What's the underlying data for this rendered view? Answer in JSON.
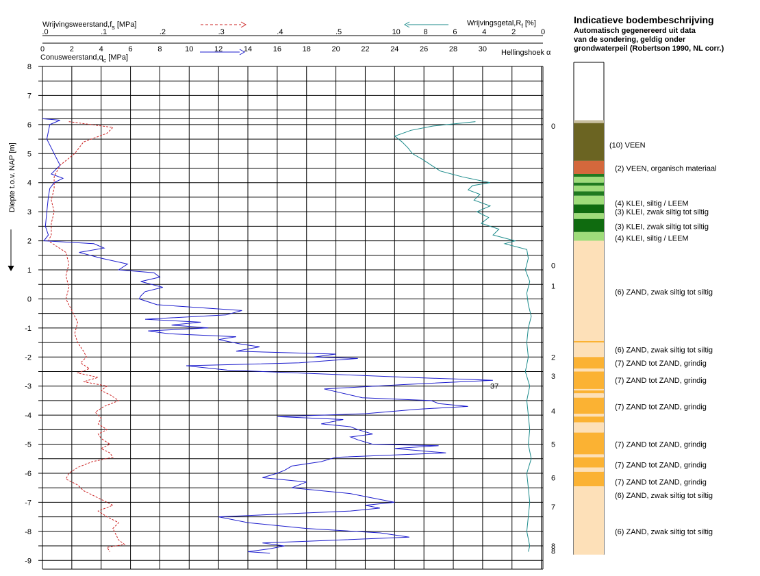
{
  "chart_data": {
    "type": "line",
    "header": {
      "fs_label": "Wrijvingsweerstand,f",
      "fs_sub": "s",
      "fs_unit": " [MPa]",
      "rf_label": "Wrijvingsgetal,R",
      "rf_sub": "f",
      "rf_unit": " [%]",
      "qc_label": "Conusweerstand,q",
      "qc_sub": "c",
      "qc_unit": " [MPa]",
      "hoek_label": "Hellingshoek α",
      "ylabel": "Diepte t.o.v. NAP [m]"
    },
    "fs_ticks": [
      ".0",
      ".1",
      ".2",
      ".3",
      ".4",
      ".5"
    ],
    "rf_ticks": [
      "10",
      "8",
      "6",
      "4",
      "2",
      "0"
    ],
    "qc_ticks": [
      "0",
      "2",
      "4",
      "6",
      "8",
      "10",
      "12",
      "14",
      "16",
      "18",
      "20",
      "22",
      "24",
      "26",
      "28",
      "30"
    ],
    "y_ticks": [
      "8",
      "7",
      "6",
      "5",
      "4",
      "3",
      "2",
      "1",
      "0",
      "-1",
      "-2",
      "-3",
      "-4",
      "-5",
      "-6",
      "-7",
      "-8",
      "-9"
    ],
    "ylim": [
      -9.3,
      8
    ],
    "qc_xlim": [
      0,
      34
    ],
    "fs_xlim": [
      0,
      0.6
    ],
    "rf_xlim": [
      0,
      12
    ],
    "qc_max_label": "37",
    "qc": {
      "name": "Conusweerstand",
      "color": "#1a1acc",
      "depth": [
        6.2,
        6.15,
        6.0,
        5.5,
        5.0,
        4.6,
        4.3,
        4.15,
        4.0,
        3.8,
        3.5,
        3.0,
        2.5,
        2.2,
        2.0,
        1.9,
        1.75,
        1.6,
        1.4,
        1.2,
        1.0,
        0.9,
        0.75,
        0.6,
        0.4,
        0.25,
        0.1,
        0.0,
        -0.2,
        -0.4,
        -0.55,
        -0.7,
        -0.8,
        -0.9,
        -1.0,
        -1.1,
        -1.2,
        -1.3,
        -1.4,
        -1.55,
        -1.65,
        -1.8,
        -1.9,
        -2.0,
        -2.05,
        -2.2,
        -2.3,
        -2.45,
        -2.6,
        -2.7,
        -2.8,
        -2.95,
        -3.1,
        -3.25,
        -3.4,
        -3.5,
        -3.6,
        -3.7,
        -3.8,
        -3.95,
        -4.05,
        -4.15,
        -4.3,
        -4.4,
        -4.5,
        -4.65,
        -4.75,
        -4.85,
        -5.0,
        -5.05,
        -5.15,
        -5.3,
        -5.45,
        -5.6,
        -5.75,
        -5.9,
        -6.0,
        -6.15,
        -6.3,
        -6.5,
        -6.7,
        -6.85,
        -7.0,
        -7.1,
        -7.2,
        -7.3,
        -7.5,
        -7.7,
        -7.9,
        -8.05,
        -8.2,
        -8.3,
        -8.4,
        -8.5,
        -8.6,
        -8.7,
        -8.75
      ],
      "values": [
        0.0,
        1.2,
        0.5,
        0.3,
        0.8,
        1.2,
        0.6,
        1.4,
        0.8,
        0.5,
        0.4,
        0.3,
        0.2,
        0.4,
        0.1,
        3.5,
        4.2,
        2.5,
        4.0,
        5.8,
        5.2,
        7.6,
        8.0,
        6.7,
        8.2,
        7.0,
        6.7,
        6.6,
        7.8,
        13.6,
        12.5,
        7.0,
        10.8,
        8.8,
        11.3,
        7.2,
        8.6,
        13.2,
        12.0,
        13.5,
        14.8,
        13.2,
        20.0,
        18.5,
        21.5,
        17.5,
        9.8,
        12.6,
        20.0,
        25.0,
        30.7,
        24.5,
        19.2,
        20.5,
        21.8,
        26.5,
        27.0,
        29.0,
        25.5,
        22.0,
        16.0,
        20.5,
        19.0,
        21.0,
        21.5,
        22.5,
        21.0,
        21.5,
        22.5,
        27.0,
        24.0,
        27.5,
        20.0,
        19.0,
        17.0,
        16.5,
        16.0,
        15.0,
        18.0,
        17.0,
        21.0,
        22.5,
        24.0,
        22.0,
        23.0,
        21.0,
        12.0,
        14.0,
        18.0,
        23.0,
        25.0,
        20.0,
        15.0,
        16.5,
        15.5,
        14.0,
        15.5
      ]
    },
    "fs": {
      "name": "Wrijvingsweerstand",
      "color": "#cc2222",
      "depth": [
        6.1,
        5.9,
        5.7,
        5.4,
        5.0,
        4.6,
        4.2,
        3.8,
        3.4,
        3.0,
        2.6,
        2.2,
        2.0,
        1.6,
        1.2,
        0.8,
        0.4,
        0.0,
        -0.4,
        -0.8,
        -1.2,
        -1.5,
        -1.8,
        -2.0,
        -2.2,
        -2.4,
        -2.55,
        -2.7,
        -2.85,
        -3.0,
        -3.15,
        -3.3,
        -3.5,
        -3.7,
        -3.9,
        -4.1,
        -4.3,
        -4.5,
        -4.65,
        -4.8,
        -5.0,
        -5.15,
        -5.3,
        -5.45,
        -5.6,
        -5.8,
        -6.0,
        -6.2,
        -6.4,
        -6.6,
        -6.8,
        -7.0,
        -7.1,
        -7.3,
        -7.5,
        -7.7,
        -7.9,
        -8.1,
        -8.3,
        -8.45,
        -8.55,
        -8.7
      ],
      "values": [
        0.045,
        0.12,
        0.11,
        0.07,
        0.055,
        0.03,
        0.02,
        0.02,
        0.015,
        0.02,
        0.015,
        0.015,
        0.01,
        0.04,
        0.045,
        0.04,
        0.045,
        0.04,
        0.05,
        0.06,
        0.055,
        0.06,
        0.07,
        0.075,
        0.065,
        0.08,
        0.06,
        0.095,
        0.07,
        0.11,
        0.1,
        0.115,
        0.13,
        0.105,
        0.09,
        0.1,
        0.095,
        0.11,
        0.095,
        0.1,
        0.115,
        0.1,
        0.115,
        0.12,
        0.085,
        0.06,
        0.045,
        0.04,
        0.06,
        0.07,
        0.09,
        0.11,
        0.12,
        0.095,
        0.11,
        0.13,
        0.12,
        0.125,
        0.13,
        0.14,
        0.11,
        0.115
      ]
    },
    "rf": {
      "name": "Wrijvingsgetal",
      "color": "#1a8a8a",
      "depth": [
        6.1,
        5.95,
        5.8,
        5.6,
        5.4,
        5.2,
        5.0,
        4.8,
        4.6,
        4.4,
        4.2,
        4.0,
        3.9,
        3.75,
        3.6,
        3.4,
        3.2,
        3.0,
        2.8,
        2.6,
        2.4,
        2.2,
        2.0,
        1.9,
        1.7,
        1.4,
        1.0,
        0.6,
        0.2,
        -0.2,
        -0.6,
        -1.0,
        -1.5,
        -2.0,
        -2.5,
        -3.0,
        -3.5,
        -4.0,
        -4.5,
        -5.0,
        -5.5,
        -6.0,
        -6.5,
        -7.0,
        -7.5,
        -8.0,
        -8.5,
        -8.7
      ],
      "values": [
        4.6,
        7.5,
        9.0,
        10.1,
        9.6,
        9.2,
        8.9,
        8.2,
        7.6,
        7.0,
        5.5,
        3.6,
        4.8,
        5.1,
        4.3,
        4.7,
        3.6,
        4.5,
        3.7,
        4.2,
        3.0,
        3.4,
        1.9,
        2.6,
        1.1,
        1.0,
        1.2,
        0.9,
        1.1,
        1.0,
        0.8,
        1.0,
        1.1,
        1.0,
        1.2,
        0.9,
        1.1,
        1.0,
        0.9,
        1.0,
        0.8,
        1.1,
        1.0,
        0.9,
        1.0,
        1.1,
        0.9,
        1.0
      ]
    },
    "hoek_labels": [
      {
        "depth": 5.95,
        "text": "0"
      },
      {
        "depth": 1.15,
        "text": "0"
      },
      {
        "depth": 0.45,
        "text": "1"
      },
      {
        "depth": -2.0,
        "text": "2"
      },
      {
        "depth": -2.65,
        "text": "3"
      },
      {
        "depth": -3.85,
        "text": "4"
      },
      {
        "depth": -5.0,
        "text": "5"
      },
      {
        "depth": -6.15,
        "text": "6"
      },
      {
        "depth": -7.15,
        "text": "7"
      },
      {
        "depth": -8.5,
        "text": "8"
      },
      {
        "depth": -8.68,
        "text": "8"
      }
    ]
  },
  "legend": {
    "title": "Indicatieve bodembeschrijving",
    "subtitle_lines": [
      "Automatisch gegenereerd uit data",
      "van de sondering, geldig onder",
      "grondwaterpeil (Robertson 1990, NL corr.)"
    ]
  },
  "soil": {
    "colors": {
      "veen": "#6b6422",
      "veen_org": "#d4683c",
      "klei": "#1f7a1f",
      "klei_dark": "#0f6b0f",
      "leem": "#9fdc7a",
      "zand": "#fde0b8",
      "grind": "#fbb233"
    },
    "blocks": [
      {
        "top": 6.15,
        "bottom": 6.05,
        "c": "#c8bfa0"
      },
      {
        "top": 6.05,
        "bottom": 4.75,
        "c": "#6b6422"
      },
      {
        "top": 4.75,
        "bottom": 4.3,
        "c": "#d4683c"
      },
      {
        "top": 4.3,
        "bottom": 4.2,
        "c": "#1f7a1f"
      },
      {
        "top": 4.2,
        "bottom": 4.0,
        "c": "#9fdc7a"
      },
      {
        "top": 4.0,
        "bottom": 3.9,
        "c": "#1f7a1f"
      },
      {
        "top": 3.9,
        "bottom": 3.7,
        "c": "#9fdc7a"
      },
      {
        "top": 3.7,
        "bottom": 3.55,
        "c": "#1f7a1f"
      },
      {
        "top": 3.55,
        "bottom": 3.25,
        "c": "#9fdc7a"
      },
      {
        "top": 3.25,
        "bottom": 2.95,
        "c": "#0f6b0f"
      },
      {
        "top": 2.95,
        "bottom": 2.75,
        "c": "#9fdc7a"
      },
      {
        "top": 2.75,
        "bottom": 2.3,
        "c": "#0f6b0f"
      },
      {
        "top": 2.3,
        "bottom": 2.0,
        "c": "#9fdc7a"
      },
      {
        "top": 2.0,
        "bottom": -1.45,
        "c": "#fde0b8"
      },
      {
        "top": -1.45,
        "bottom": -1.5,
        "c": "#fbb233"
      },
      {
        "top": -1.5,
        "bottom": -2.0,
        "c": "#fde0b8"
      },
      {
        "top": -2.0,
        "bottom": -2.4,
        "c": "#fbb233"
      },
      {
        "top": -2.4,
        "bottom": -2.5,
        "c": "#fde0b8"
      },
      {
        "top": -2.5,
        "bottom": -3.1,
        "c": "#fbb233"
      },
      {
        "top": -3.1,
        "bottom": -3.15,
        "c": "#fde0b8"
      },
      {
        "top": -3.15,
        "bottom": -3.25,
        "c": "#fbb233"
      },
      {
        "top": -3.25,
        "bottom": -3.4,
        "c": "#fde0b8"
      },
      {
        "top": -3.4,
        "bottom": -3.95,
        "c": "#fbb233"
      },
      {
        "top": -3.95,
        "bottom": -4.05,
        "c": "#fde0b8"
      },
      {
        "top": -4.05,
        "bottom": -4.25,
        "c": "#fbb233"
      },
      {
        "top": -4.25,
        "bottom": -4.6,
        "c": "#fde0b8"
      },
      {
        "top": -4.6,
        "bottom": -5.35,
        "c": "#fbb233"
      },
      {
        "top": -5.35,
        "bottom": -5.45,
        "c": "#fde0b8"
      },
      {
        "top": -5.45,
        "bottom": -5.8,
        "c": "#fbb233"
      },
      {
        "top": -5.8,
        "bottom": -5.95,
        "c": "#fde0b8"
      },
      {
        "top": -5.95,
        "bottom": -6.45,
        "c": "#fbb233"
      },
      {
        "top": -6.45,
        "bottom": -8.8,
        "c": "#fde0b8"
      }
    ],
    "labels": [
      {
        "depth": 5.3,
        "x": 890,
        "text": "(10) VEEN"
      },
      {
        "depth": 4.5,
        "x": 898,
        "text": "(2) VEEN, organisch materiaal"
      },
      {
        "depth": 3.3,
        "x": 898,
        "text": "(4) KLEI, siltig / LEEM"
      },
      {
        "depth": 3.0,
        "x": 898,
        "text": "(3) KLEI, zwak siltig tot siltig"
      },
      {
        "depth": 2.5,
        "x": 898,
        "text": "(3) KLEI, zwak siltig tot siltig"
      },
      {
        "depth": 2.1,
        "x": 898,
        "text": "(4) KLEI, siltig / LEEM"
      },
      {
        "depth": 0.25,
        "x": 898,
        "text": "(6) ZAND, zwak siltig tot siltig"
      },
      {
        "depth": -1.75,
        "x": 898,
        "text": "(6) ZAND, zwak siltig tot siltig"
      },
      {
        "depth": -2.2,
        "x": 898,
        "text": "(7) ZAND tot ZAND, grindig"
      },
      {
        "depth": -2.8,
        "x": 898,
        "text": "(7) ZAND tot ZAND, grindig"
      },
      {
        "depth": -3.7,
        "x": 898,
        "text": "(7) ZAND tot ZAND, grindig"
      },
      {
        "depth": -5.0,
        "x": 898,
        "text": "(7) ZAND tot ZAND, grindig"
      },
      {
        "depth": -5.7,
        "x": 898,
        "text": "(7) ZAND tot ZAND, grindig"
      },
      {
        "depth": -6.3,
        "x": 898,
        "text": "(7) ZAND tot ZAND, grindig"
      },
      {
        "depth": -6.75,
        "x": 898,
        "text": "(6) ZAND, zwak siltig tot siltig"
      },
      {
        "depth": -8.0,
        "x": 898,
        "text": "(6) ZAND, zwak siltig tot siltig"
      }
    ]
  }
}
